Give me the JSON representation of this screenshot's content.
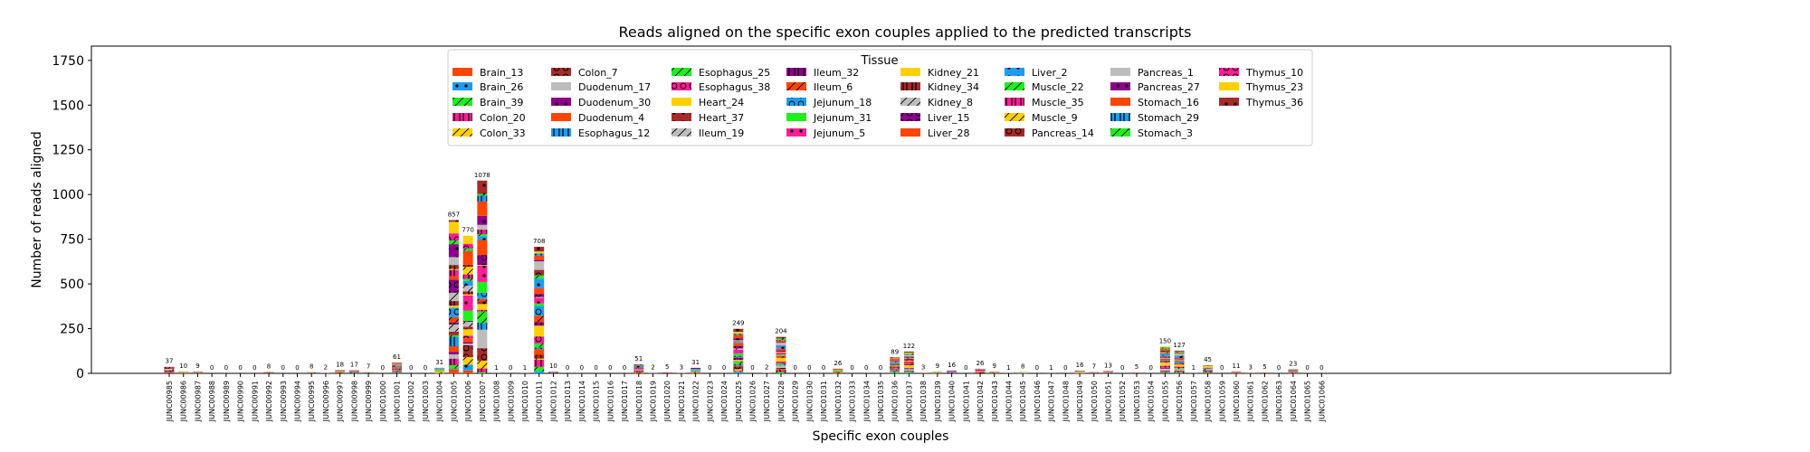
{
  "chart_data": {
    "type": "bar",
    "stacked": true,
    "title": "Reads aligned on the specific exon couples applied to the predicted transcripts",
    "xlabel": "Specific exon couples",
    "ylabel": "Number of reads aligned",
    "ylim": [
      0,
      1830
    ],
    "yticks": [
      0,
      250,
      500,
      750,
      1000,
      1250,
      1500,
      1750
    ],
    "grid": false,
    "legend": {
      "title": "Tissue",
      "placement": "top-center",
      "columns": 9
    },
    "categories": [
      "JUNC00985",
      "JUNC00986",
      "JUNC00987",
      "JUNC00988",
      "JUNC00989",
      "JUNC00990",
      "JUNC00991",
      "JUNC00992",
      "JUNC00993",
      "JUNC00994",
      "JUNC00995",
      "JUNC00996",
      "JUNC00997",
      "JUNC00998",
      "JUNC00999",
      "JUNC01000",
      "JUNC01001",
      "JUNC01002",
      "JUNC01003",
      "JUNC01004",
      "JUNC01005",
      "JUNC01006",
      "JUNC01007",
      "JUNC01008",
      "JUNC01009",
      "JUNC01010",
      "JUNC01011",
      "JUNC01012",
      "JUNC01013",
      "JUNC01014",
      "JUNC01015",
      "JUNC01016",
      "JUNC01017",
      "JUNC01018",
      "JUNC01019",
      "JUNC01020",
      "JUNC01021",
      "JUNC01022",
      "JUNC01023",
      "JUNC01024",
      "JUNC01025",
      "JUNC01026",
      "JUNC01027",
      "JUNC01028",
      "JUNC01029",
      "JUNC01030",
      "JUNC01031",
      "JUNC01032",
      "JUNC01033",
      "JUNC01034",
      "JUNC01035",
      "JUNC01036",
      "JUNC01037",
      "JUNC01038",
      "JUNC01039",
      "JUNC01040",
      "JUNC01041",
      "JUNC01042",
      "JUNC01043",
      "JUNC01044",
      "JUNC01045",
      "JUNC01046",
      "JUNC01047",
      "JUNC01048",
      "JUNC01049",
      "JUNC01050",
      "JUNC01051",
      "JUNC01052",
      "JUNC01053",
      "JUNC01054",
      "JUNC01055",
      "JUNC01056",
      "JUNC01057",
      "JUNC01058",
      "JUNC01059",
      "JUNC01060",
      "JUNC01061",
      "JUNC01062",
      "JUNC01063",
      "JUNC01064",
      "JUNC01065",
      "JUNC01066"
    ],
    "totals": [
      37,
      10,
      9,
      0,
      0,
      0,
      0,
      8,
      0,
      0,
      8,
      2,
      18,
      17,
      7,
      0,
      61,
      0,
      0,
      31,
      857,
      770,
      1078,
      1,
      0,
      1,
      708,
      10,
      0,
      0,
      0,
      0,
      0,
      51,
      2,
      5,
      3,
      31,
      0,
      0,
      249,
      0,
      2,
      204,
      0,
      0,
      0,
      26,
      0,
      0,
      0,
      89,
      122,
      3,
      9,
      16,
      0,
      26,
      9,
      1,
      8,
      0,
      1,
      0,
      16,
      7,
      13,
      0,
      5,
      0,
      150,
      127,
      1,
      45,
      0,
      11,
      3,
      5,
      0,
      23,
      0,
      0
    ],
    "series": [
      {
        "name": "Brain_13",
        "color": "#ff4500",
        "pattern": "none"
      },
      {
        "name": "Brain_26",
        "color": "#1e9cf0",
        "pattern": "dot"
      },
      {
        "name": "Brain_39",
        "color": "#1ef01e",
        "pattern": "slash"
      },
      {
        "name": "Colon_20",
        "color": "#ff1e96",
        "pattern": "bars"
      },
      {
        "name": "Colon_33",
        "color": "#ffd000",
        "pattern": "slash"
      },
      {
        "name": "Colon_7",
        "color": "#a52a2a",
        "pattern": "ring"
      },
      {
        "name": "Duodenum_17",
        "color": "#bdbdbd",
        "pattern": "none"
      },
      {
        "name": "Duodenum_30",
        "color": "#8b008b",
        "pattern": "dot"
      },
      {
        "name": "Duodenum_4",
        "color": "#ff4500",
        "pattern": "none"
      },
      {
        "name": "Esophagus_12",
        "color": "#1e9cf0",
        "pattern": "bars"
      },
      {
        "name": "Esophagus_25",
        "color": "#1ef01e",
        "pattern": "slash"
      },
      {
        "name": "Esophagus_38",
        "color": "#ff1e96",
        "pattern": "ring"
      },
      {
        "name": "Heart_24",
        "color": "#ffd000",
        "pattern": "none"
      },
      {
        "name": "Heart_37",
        "color": "#a52a2a",
        "pattern": "dot"
      },
      {
        "name": "Ileum_19",
        "color": "#bdbdbd",
        "pattern": "slash"
      },
      {
        "name": "Ileum_32",
        "color": "#8b008b",
        "pattern": "bars"
      },
      {
        "name": "Ileum_6",
        "color": "#ff4500",
        "pattern": "slash"
      },
      {
        "name": "Jejunum_18",
        "color": "#1e9cf0",
        "pattern": "ring"
      },
      {
        "name": "Jejunum_31",
        "color": "#1ef01e",
        "pattern": "none"
      },
      {
        "name": "Jejunum_5",
        "color": "#ff1e96",
        "pattern": "dot"
      },
      {
        "name": "Kidney_21",
        "color": "#ffd000",
        "pattern": "none"
      },
      {
        "name": "Kidney_34",
        "color": "#a52a2a",
        "pattern": "bars"
      },
      {
        "name": "Kidney_8",
        "color": "#bdbdbd",
        "pattern": "slash"
      },
      {
        "name": "Liver_15",
        "color": "#8b008b",
        "pattern": "ring"
      },
      {
        "name": "Liver_28",
        "color": "#ff4500",
        "pattern": "none"
      },
      {
        "name": "Liver_2",
        "color": "#1e9cf0",
        "pattern": "dot"
      },
      {
        "name": "Muscle_22",
        "color": "#1ef01e",
        "pattern": "slash"
      },
      {
        "name": "Muscle_35",
        "color": "#ff1e96",
        "pattern": "bars"
      },
      {
        "name": "Muscle_9",
        "color": "#ffd000",
        "pattern": "slash"
      },
      {
        "name": "Pancreas_14",
        "color": "#a52a2a",
        "pattern": "ring"
      },
      {
        "name": "Pancreas_1",
        "color": "#bdbdbd",
        "pattern": "none"
      },
      {
        "name": "Pancreas_27",
        "color": "#8b008b",
        "pattern": "dot"
      },
      {
        "name": "Stomach_16",
        "color": "#ff4500",
        "pattern": "none"
      },
      {
        "name": "Stomach_29",
        "color": "#1e9cf0",
        "pattern": "bars"
      },
      {
        "name": "Stomach_3",
        "color": "#1ef01e",
        "pattern": "slash"
      },
      {
        "name": "Thymus_10",
        "color": "#ff1e96",
        "pattern": "ring"
      },
      {
        "name": "Thymus_23",
        "color": "#ffd000",
        "pattern": "none"
      },
      {
        "name": "Thymus_36",
        "color": "#a52a2a",
        "pattern": "dot"
      }
    ]
  }
}
